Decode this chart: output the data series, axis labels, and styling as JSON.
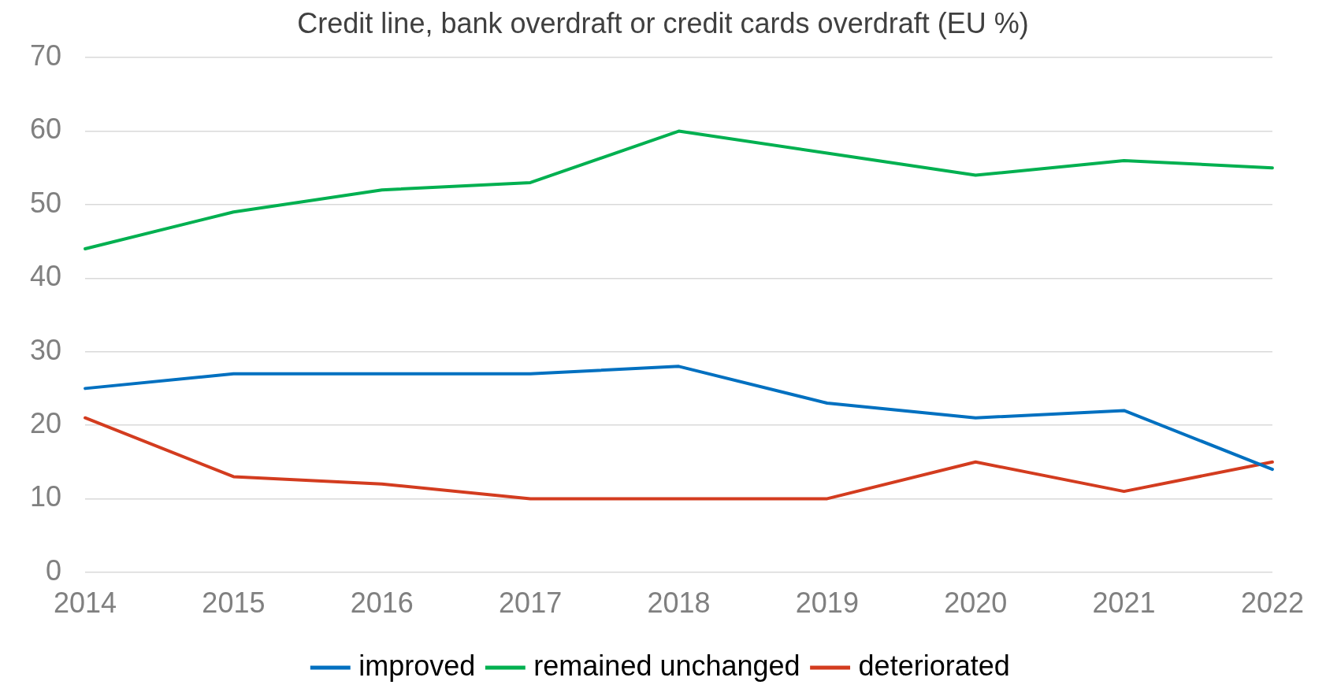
{
  "chart_data": {
    "type": "line",
    "title": "Credit line, bank overdraft or credit cards overdraft (EU %)",
    "categories": [
      "2014",
      "2015",
      "2016",
      "2017",
      "2018",
      "2019",
      "2020",
      "2021",
      "2022"
    ],
    "series": [
      {
        "name": "improved",
        "color": "#0070c0",
        "values": [
          25,
          27,
          27,
          27,
          28,
          23,
          21,
          22,
          14
        ]
      },
      {
        "name": "remained unchanged",
        "color": "#00b050",
        "values": [
          44,
          49,
          52,
          53,
          60,
          57,
          54,
          56,
          55
        ]
      },
      {
        "name": "deteriorated",
        "color": "#d33c1f",
        "values": [
          21,
          13,
          12,
          10,
          10,
          10,
          15,
          11,
          15
        ]
      }
    ],
    "ylim": [
      0,
      70
    ],
    "yticks": [
      0,
      10,
      20,
      30,
      40,
      50,
      60,
      70
    ],
    "grid": "y",
    "legend": "bottom",
    "marker": "none",
    "line_style": "solid"
  }
}
